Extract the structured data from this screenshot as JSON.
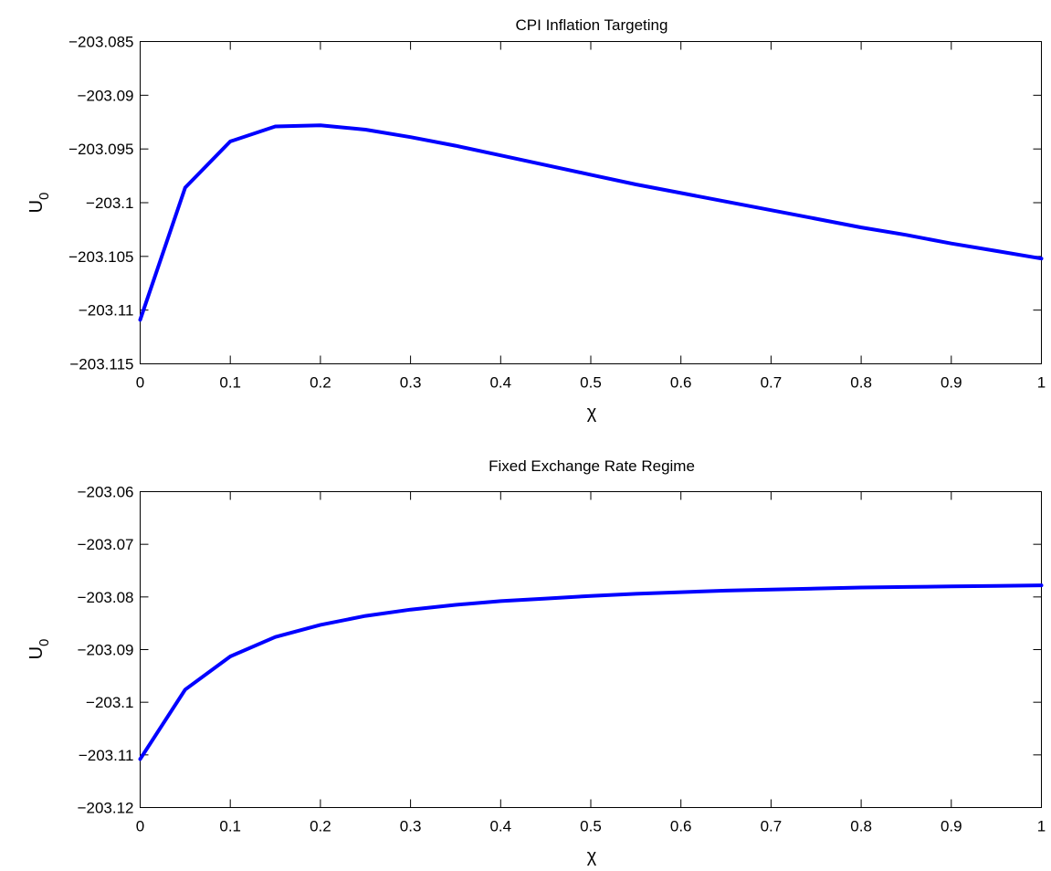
{
  "chart_data": [
    {
      "type": "line",
      "title": "CPI Inflation Targeting",
      "xlabel": "χ",
      "ylabel": "U",
      "ylabel_sub": "0",
      "xlim": [
        0,
        1
      ],
      "ylim": [
        -203.115,
        -203.085
      ],
      "xticks": [
        0,
        0.1,
        0.2,
        0.3,
        0.4,
        0.5,
        0.6,
        0.7,
        0.8,
        0.9,
        1
      ],
      "xtick_labels": [
        "0",
        "0.1",
        "0.2",
        "0.3",
        "0.4",
        "0.5",
        "0.6",
        "0.7",
        "0.8",
        "0.9",
        "1"
      ],
      "yticks": [
        -203.085,
        -203.09,
        -203.095,
        -203.1,
        -203.105,
        -203.11,
        -203.115
      ],
      "ytick_labels": [
        "−203.085",
        "−203.09",
        "−203.095",
        "−203.1",
        "−203.105",
        "−203.11",
        "−203.115"
      ],
      "grid": false,
      "color": "#0000ff",
      "x": [
        0,
        0.05,
        0.1,
        0.15,
        0.2,
        0.25,
        0.3,
        0.35,
        0.4,
        0.45,
        0.5,
        0.55,
        0.6,
        0.65,
        0.7,
        0.75,
        0.8,
        0.85,
        0.9,
        0.95,
        1
      ],
      "y": [
        -203.1109,
        -203.0986,
        -203.0943,
        -203.0929,
        -203.0928,
        -203.0932,
        -203.0939,
        -203.0947,
        -203.0956,
        -203.0965,
        -203.0974,
        -203.0983,
        -203.0991,
        -203.0999,
        -203.1007,
        -203.1015,
        -203.1023,
        -203.103,
        -203.1038,
        -203.1045,
        -203.1052
      ]
    },
    {
      "type": "line",
      "title": "Fixed Exchange Rate Regime",
      "xlabel": "χ",
      "ylabel": "U",
      "ylabel_sub": "0",
      "xlim": [
        0,
        1
      ],
      "ylim": [
        -203.12,
        -203.06
      ],
      "xticks": [
        0,
        0.1,
        0.2,
        0.3,
        0.4,
        0.5,
        0.6,
        0.7,
        0.8,
        0.9,
        1
      ],
      "xtick_labels": [
        "0",
        "0.1",
        "0.2",
        "0.3",
        "0.4",
        "0.5",
        "0.6",
        "0.7",
        "0.8",
        "0.9",
        "1"
      ],
      "yticks": [
        -203.06,
        -203.07,
        -203.08,
        -203.09,
        -203.1,
        -203.11,
        -203.12
      ],
      "ytick_labels": [
        "−203.06",
        "−203.07",
        "−203.08",
        "−203.09",
        "−203.1",
        "−203.11",
        "−203.12"
      ],
      "grid": false,
      "color": "#0000ff",
      "x": [
        0,
        0.05,
        0.1,
        0.15,
        0.2,
        0.25,
        0.3,
        0.35,
        0.4,
        0.45,
        0.5,
        0.55,
        0.6,
        0.65,
        0.7,
        0.75,
        0.8,
        0.85,
        0.9,
        0.95,
        1
      ],
      "y": [
        -203.1108,
        -203.0976,
        -203.0913,
        -203.0876,
        -203.0853,
        -203.0836,
        -203.0824,
        -203.0815,
        -203.0808,
        -203.0803,
        -203.0798,
        -203.0794,
        -203.0791,
        -203.0788,
        -203.0786,
        -203.0784,
        -203.0782,
        -203.0781,
        -203.078,
        -203.0779,
        -203.0778
      ]
    }
  ]
}
